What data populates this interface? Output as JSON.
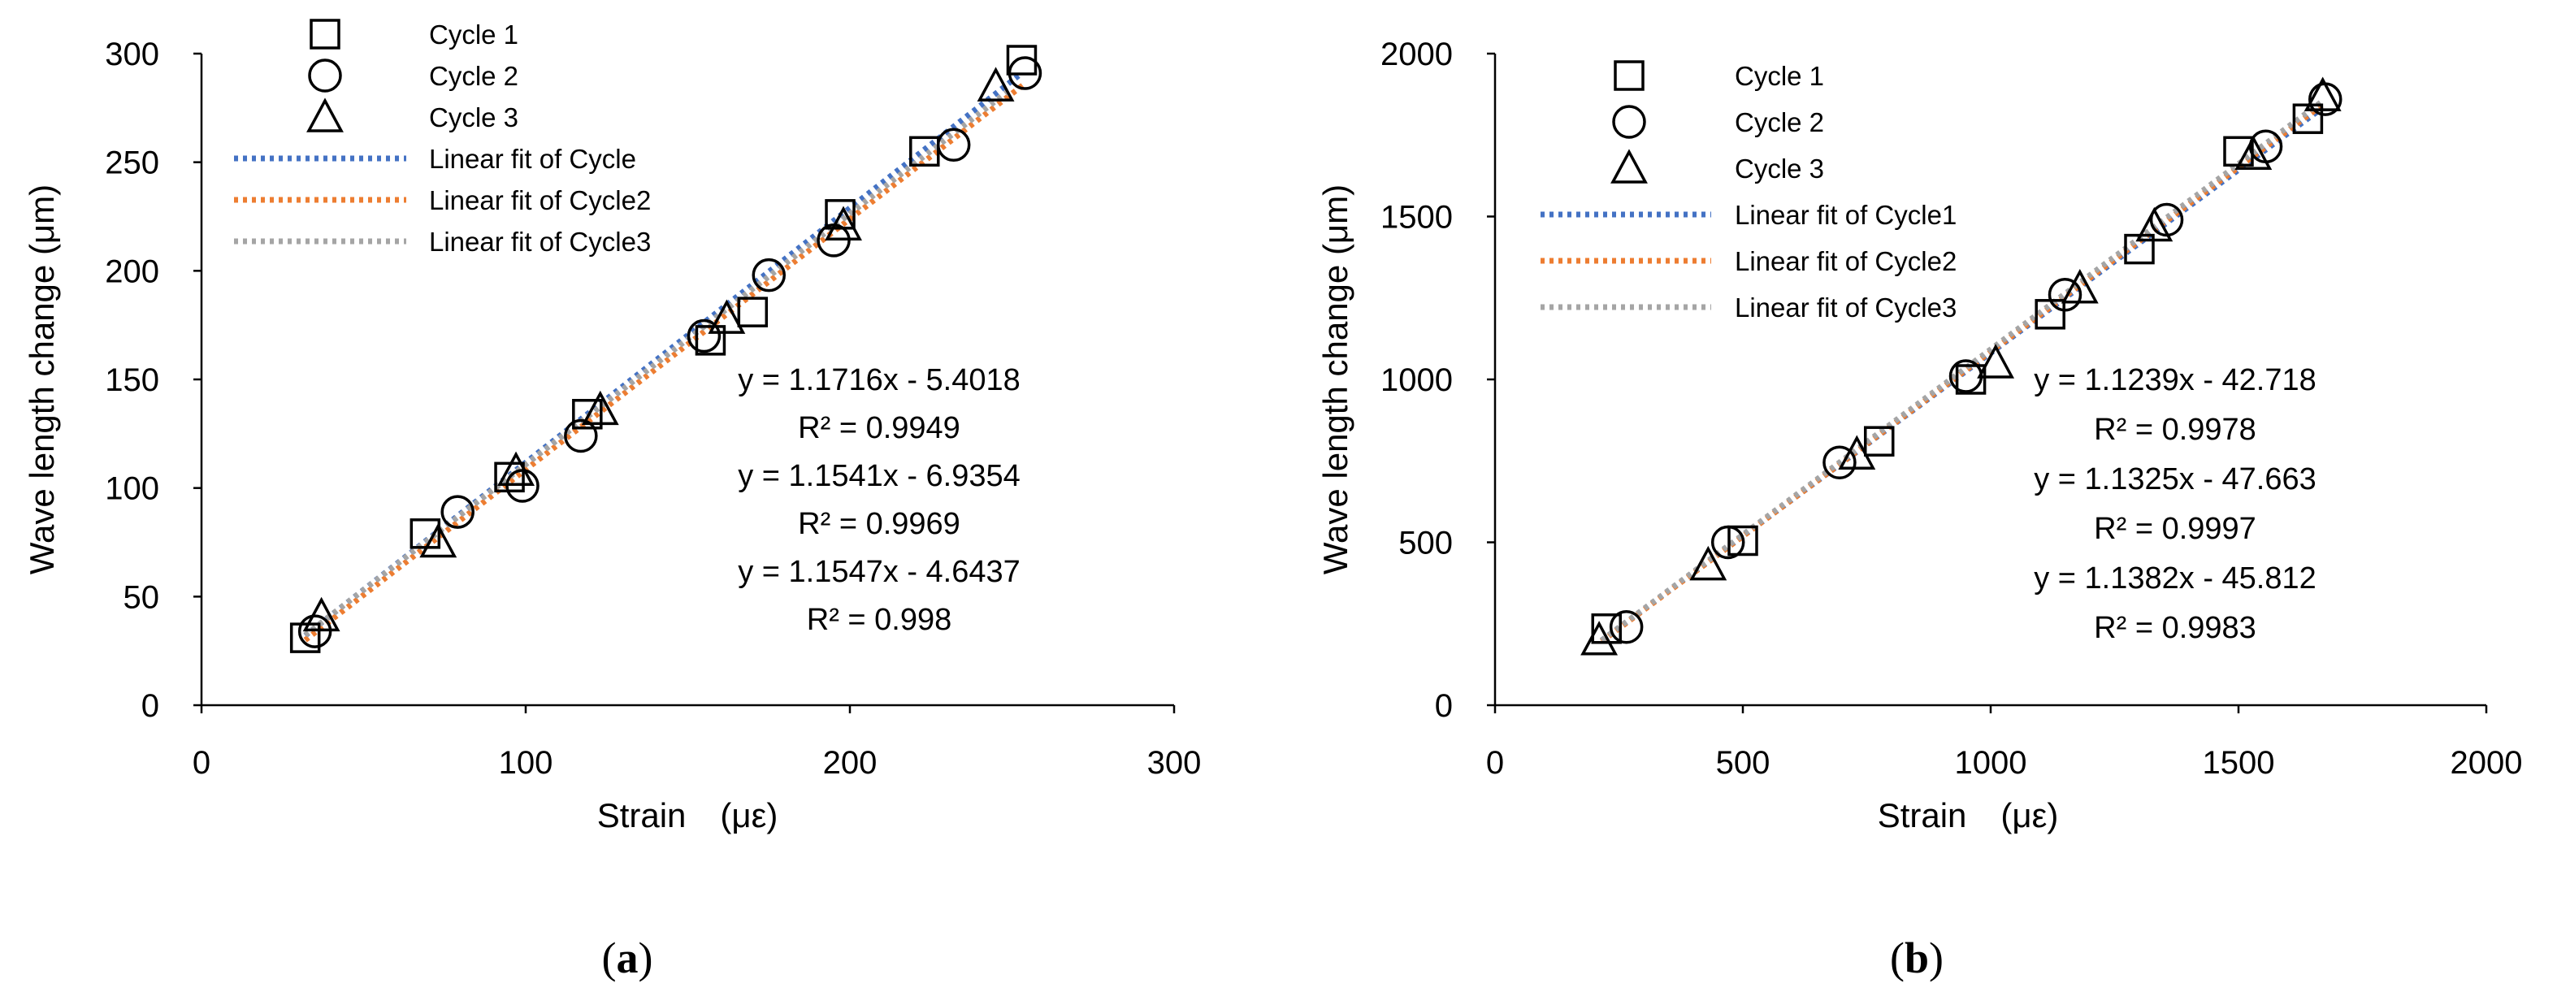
{
  "chart_data": [
    {
      "id": "a",
      "type": "scatter",
      "caption_letter": "a",
      "xlabel": "Strain　(με)",
      "ylabel": "Wave length change (μm)",
      "xlim": [
        0,
        300
      ],
      "ylim": [
        0,
        300
      ],
      "xticks": [
        0,
        100,
        200,
        300
      ],
      "yticks": [
        0,
        50,
        100,
        150,
        200,
        250,
        300
      ],
      "legend_location": "top-left",
      "series": [
        {
          "name": "Cycle 1",
          "marker": "square",
          "x": [
            32,
            69,
            95,
            119,
            157,
            170,
            197,
            223,
            253
          ],
          "y": [
            31,
            79,
            105,
            134,
            168,
            181,
            226,
            255,
            297
          ]
        },
        {
          "name": "Cycle 2",
          "marker": "circle",
          "x": [
            35,
            79,
            99,
            117,
            155,
            175,
            195,
            232,
            254
          ],
          "y": [
            34,
            89,
            101,
            124,
            170,
            198,
            214,
            258,
            291
          ]
        },
        {
          "name": "Cycle 3",
          "marker": "triangle",
          "x": [
            37,
            73,
            97,
            123,
            162,
            198,
            245
          ],
          "y": [
            41,
            75,
            108,
            136,
            178,
            221,
            285
          ]
        }
      ],
      "fits": [
        {
          "name": "Linear fit of Cycle",
          "color": "#4472C4",
          "slope": 1.1716,
          "intercept": -5.4018,
          "x_range": [
            32,
            253
          ],
          "equation": "y = 1.1716x - 5.4018",
          "r2": "R² = 0.9949"
        },
        {
          "name": "Linear fit of Cycle2",
          "color": "#ED7D31",
          "slope": 1.1541,
          "intercept": -6.9354,
          "x_range": [
            32,
            254
          ],
          "equation": "y = 1.1541x - 6.9354",
          "r2": "R² = 0.9969"
        },
        {
          "name": "Linear fit of Cycle3",
          "color": "#A5A5A5",
          "slope": 1.1547,
          "intercept": -4.6437,
          "x_range": [
            32,
            250
          ],
          "equation": "y = 1.1547x - 4.6437",
          "r2": "R² = 0.998"
        }
      ]
    },
    {
      "id": "b",
      "type": "scatter",
      "caption_letter": "b",
      "xlabel": "Strain　(με)",
      "ylabel": "Wave length change (μm)",
      "xlim": [
        0,
        2000
      ],
      "ylim": [
        0,
        2000
      ],
      "xticks": [
        0,
        500,
        1000,
        1500,
        2000
      ],
      "yticks": [
        0,
        500,
        1000,
        1500,
        2000
      ],
      "legend_location": "top-left",
      "series": [
        {
          "name": "Cycle 1",
          "marker": "square",
          "x": [
            225,
            500,
            775,
            960,
            1120,
            1300,
            1500,
            1640
          ],
          "y": [
            235,
            505,
            810,
            1000,
            1200,
            1400,
            1700,
            1800
          ]
        },
        {
          "name": "Cycle 2",
          "marker": "circle",
          "x": [
            265,
            470,
            695,
            950,
            1150,
            1355,
            1555,
            1675
          ],
          "y": [
            240,
            500,
            745,
            1010,
            1260,
            1490,
            1715,
            1860
          ]
        },
        {
          "name": "Cycle 3",
          "marker": "triangle",
          "x": [
            210,
            430,
            730,
            1010,
            1180,
            1330,
            1530,
            1670
          ],
          "y": [
            200,
            430,
            770,
            1050,
            1280,
            1470,
            1690,
            1870
          ]
        }
      ],
      "fits": [
        {
          "name": "Linear fit of Cycle1",
          "color": "#4472C4",
          "slope": 1.1239,
          "intercept": -42.718,
          "x_range": [
            215,
            1670
          ],
          "equation": "y = 1.1239x - 42.718",
          "r2": "R² = 0.9978"
        },
        {
          "name": "Linear fit of Cycle2",
          "color": "#ED7D31",
          "slope": 1.1325,
          "intercept": -47.663,
          "x_range": [
            215,
            1670
          ],
          "equation": "y = 1.1325x - 47.663",
          "r2": "R² = 0.9997"
        },
        {
          "name": "Linear fit of Cycle3",
          "color": "#A5A5A5",
          "slope": 1.1382,
          "intercept": -45.812,
          "x_range": [
            215,
            1670
          ],
          "equation": "y = 1.1382x - 45.812",
          "r2": "R² = 0.9983"
        }
      ]
    }
  ]
}
